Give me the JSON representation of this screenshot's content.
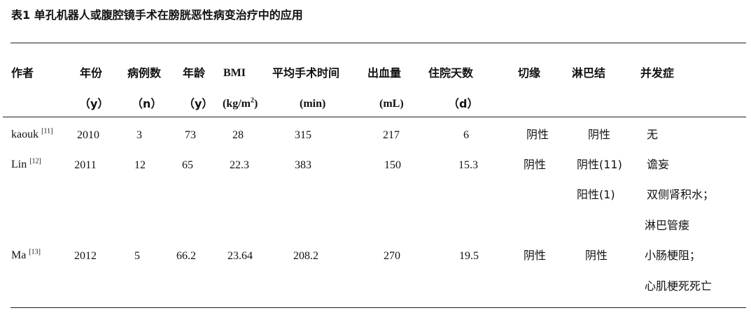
{
  "title": "表1  单孔机器人或腹腔镜手术在膀胱恶性病变治疗中的应用",
  "headers": {
    "row1": [
      "作者",
      "年份",
      "病例数",
      "年龄",
      "BMI",
      "平均手术时间",
      "出血量",
      "住院天数",
      "切缘",
      "淋巴结",
      "并发症"
    ],
    "row2": {
      "year": "（y）",
      "cases": "（n）",
      "age": "（y）",
      "bmi_unit": "(kg/m",
      "bmi_exp": "2",
      "bmi_close": ")",
      "time": "(min)",
      "blood": "(mL)",
      "stay": "（d）"
    }
  },
  "rows": [
    {
      "author": "kaouk",
      "ref": "[11]",
      "year": "2010",
      "cases": "3",
      "age": "73",
      "bmi": "28",
      "time": "315",
      "blood": "217",
      "stay": "6",
      "margin": "阴性",
      "lymph": [
        "阴性"
      ],
      "complications": [
        "无"
      ]
    },
    {
      "author": "Lin",
      "ref": "[12]",
      "year": "2011",
      "cases": "12",
      "age": "65",
      "bmi": "22.3",
      "time": "383",
      "blood": "150",
      "stay": "15.3",
      "margin": "阴性",
      "lymph": [
        "阴性(11)",
        "阳性(1)"
      ],
      "complications": [
        "谵妄",
        "双侧肾积水；",
        "淋巴管瘘"
      ]
    },
    {
      "author": "Ma",
      "ref": "[13]",
      "year": "2012",
      "cases": "5",
      "age": "66.2",
      "bmi": "23.64",
      "time": "208.2",
      "blood": "270",
      "stay": "19.5",
      "margin": "阴性",
      "lymph": [
        "阴性"
      ],
      "complications": [
        "小肠梗阻；",
        "心肌梗死死亡"
      ]
    }
  ]
}
